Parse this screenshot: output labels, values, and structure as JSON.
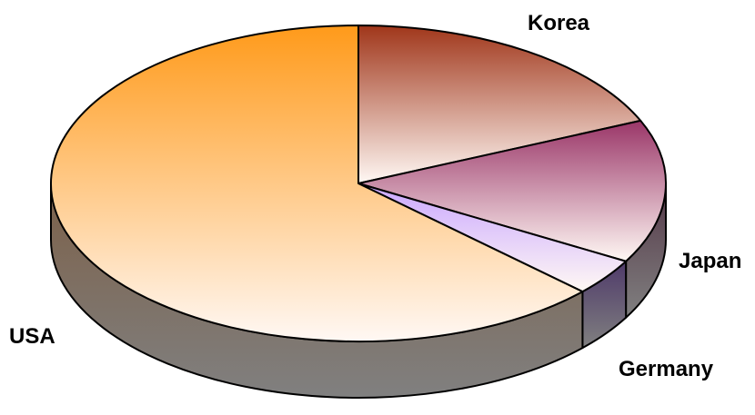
{
  "chart_data": {
    "type": "pie",
    "style": "3d",
    "title": "",
    "categories": [
      "Korea",
      "Japan",
      "Germany",
      "USA"
    ],
    "values": [
      18.5,
      14.7,
      3.8,
      63.0
    ],
    "unit": "percent",
    "legend": "none",
    "data_labels": "category names beside slices",
    "colors": {
      "Korea": "#a0361a",
      "Japan": "#9a3668",
      "Germany": "#c9a6ff",
      "USA": "#ff9a1a"
    },
    "side_colors": {
      "Korea": "#6a3222",
      "Japan": "#553848",
      "Germany": "#4f3a6a",
      "USA": "#7c6048"
    }
  }
}
